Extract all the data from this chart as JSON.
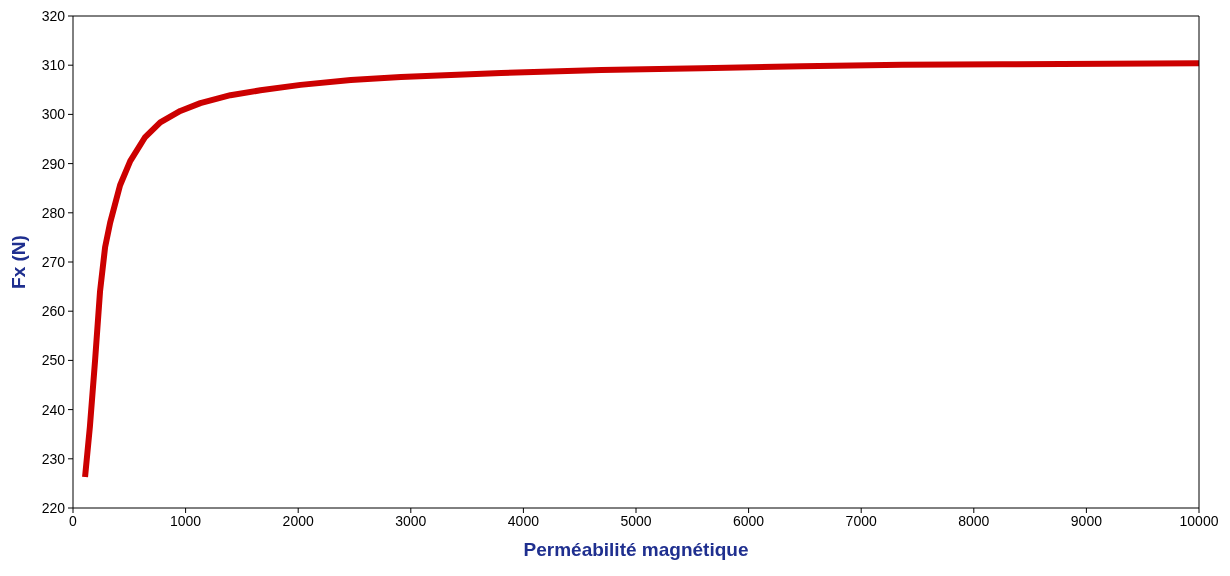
{
  "chart_data": {
    "type": "line",
    "xlabel": "Perméabilité magnétique",
    "ylabel": "Fx (N)",
    "x": [
      107,
      150,
      196,
      240,
      285,
      330,
      418,
      508,
      641,
      775,
      953,
      1131,
      1398,
      1665,
      2021,
      2467,
      2912,
      3802,
      4693,
      5583,
      6474,
      7364,
      8254,
      10000
    ],
    "series": [
      {
        "color": "#cc0000",
        "values": [
          226.3,
          236.5,
          250,
          264,
          273,
          278,
          285.6,
          290.5,
          295.4,
          298.4,
          300.7,
          302.3,
          303.9,
          304.9,
          306,
          307,
          307.6,
          308.4,
          309,
          309.4,
          309.8,
          310.1,
          310.2,
          310.4
        ]
      }
    ],
    "xlim": [
      0,
      10000
    ],
    "xticks": [
      0,
      1000,
      2000,
      3000,
      4000,
      5000,
      6000,
      7000,
      8000,
      9000,
      10000
    ],
    "ylim": [
      220,
      320
    ],
    "yticks": [
      220,
      230,
      240,
      250,
      260,
      270,
      280,
      290,
      300,
      310,
      320
    ],
    "grid": false,
    "marker": "none",
    "line_style": "solid"
  }
}
